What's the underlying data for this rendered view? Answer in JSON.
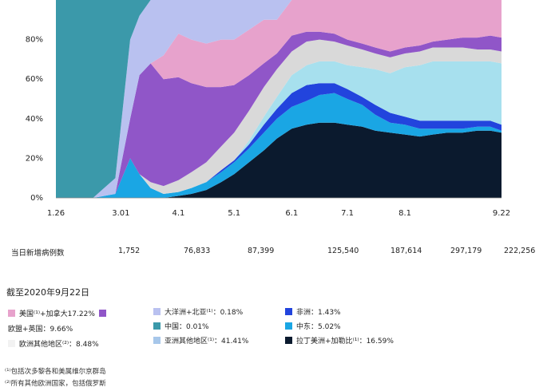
{
  "chart_data": {
    "type": "area",
    "stacked": true,
    "ylim": [
      0,
      100
    ],
    "ytick_labels": [
      "0%",
      "20%",
      "40%",
      "60%",
      "80%"
    ],
    "y_ticks": [
      0,
      20,
      40,
      60,
      80
    ],
    "x_range": [
      "2020-01-26",
      "2020-09-22"
    ],
    "x_tick_labels": [
      {
        "date": "2020-01-26",
        "label": "1.26"
      },
      {
        "date": "2020-03-01",
        "label": "3.01"
      },
      {
        "date": "2020-04-01",
        "label": "4.1"
      },
      {
        "date": "2020-05-01",
        "label": "5.1"
      },
      {
        "date": "2020-06-01",
        "label": "6.1"
      },
      {
        "date": "2020-07-01",
        "label": "7.1"
      },
      {
        "date": "2020-08-01",
        "label": "8.1"
      },
      {
        "date": "2020-09-22",
        "label": "9.22"
      }
    ],
    "x": [
      "2020-01-26",
      "2020-02-15",
      "2020-02-27",
      "2020-03-06",
      "2020-03-11",
      "2020-03-17",
      "2020-03-24",
      "2020-04-01",
      "2020-04-08",
      "2020-04-16",
      "2020-04-24",
      "2020-05-01",
      "2020-05-09",
      "2020-05-17",
      "2020-05-24",
      "2020-06-01",
      "2020-06-09",
      "2020-06-16",
      "2020-06-24",
      "2020-07-01",
      "2020-07-09",
      "2020-07-16",
      "2020-07-24",
      "2020-08-01",
      "2020-08-09",
      "2020-08-16",
      "2020-08-24",
      "2020-09-01",
      "2020-09-09",
      "2020-09-16",
      "2020-09-22"
    ],
    "series": [
      {
        "color": "#0b1a2e",
        "values": [
          0,
          0,
          0,
          0,
          0,
          0,
          0,
          1,
          2,
          4,
          8,
          12,
          18,
          24,
          30,
          35,
          37,
          38,
          38,
          37,
          36,
          34,
          33,
          32,
          31,
          32,
          33,
          33,
          34,
          34,
          33
        ]
      },
      {
        "color": "#1aa6e4",
        "values": [
          0,
          0,
          2,
          20,
          12,
          5,
          2,
          2,
          3,
          4,
          5,
          6,
          7,
          9,
          10,
          11,
          12,
          14,
          15,
          13,
          11,
          8,
          5,
          5,
          4,
          3,
          2,
          2,
          2,
          2,
          1
        ]
      },
      {
        "color": "#2244dd",
        "values": [
          0,
          0,
          0,
          0,
          0,
          0,
          0,
          0,
          0,
          0,
          1,
          1,
          2,
          4,
          5,
          7,
          8,
          6,
          5,
          5,
          4,
          5,
          5,
          4,
          4,
          4,
          4,
          4,
          3,
          3,
          3
        ]
      },
      {
        "color": "#a7e0ee",
        "values": [
          0,
          0,
          0,
          0,
          0,
          0,
          0,
          0,
          0,
          0,
          0,
          0,
          2,
          4,
          6,
          9,
          10,
          11,
          11,
          12,
          15,
          18,
          20,
          25,
          28,
          30,
          30,
          30,
          30,
          30,
          31
        ]
      },
      {
        "color": "#d9d9d9",
        "values": [
          0,
          0,
          0,
          0,
          0,
          3,
          4,
          6,
          8,
          10,
          12,
          14,
          15,
          15,
          14,
          12,
          12,
          11,
          10,
          10,
          9,
          8,
          8,
          7,
          7,
          7,
          7,
          7,
          6,
          6,
          6
        ]
      },
      {
        "color": "#9056c8",
        "values": [
          0,
          0,
          0,
          20,
          50,
          60,
          54,
          52,
          45,
          38,
          30,
          24,
          18,
          12,
          8,
          8,
          5,
          4,
          4,
          3,
          3,
          3,
          3,
          3,
          3,
          3,
          4,
          5,
          6,
          7,
          7
        ]
      },
      {
        "color": "#e7a2cc",
        "values": [
          0,
          0,
          0,
          0,
          0,
          0,
          12,
          22,
          22,
          22,
          24,
          23,
          23,
          22,
          17,
          18,
          16,
          16,
          17,
          20,
          22,
          24,
          26,
          24,
          23,
          21,
          20,
          19,
          19,
          18,
          19
        ]
      },
      {
        "color": "#b9c1f0",
        "values": [
          0,
          0,
          8,
          40,
          30,
          32,
          28,
          17,
          20,
          22,
          20,
          20,
          15,
          10,
          10,
          0,
          0,
          0,
          0,
          0,
          0,
          0,
          0,
          0,
          0,
          0,
          0,
          0,
          0,
          0,
          0
        ]
      },
      {
        "color": "#3b99aa",
        "values": [
          100,
          100,
          90,
          20,
          8,
          0,
          0,
          0,
          0,
          0,
          0,
          0,
          0,
          0,
          0,
          0,
          0,
          0,
          0,
          0,
          0,
          0,
          0,
          0,
          0,
          0,
          0,
          0,
          0,
          0,
          0
        ]
      }
    ]
  },
  "new_cases": {
    "label": "当日新增病例数",
    "values": [
      "1,752",
      "76,833",
      "87,399",
      "125,540",
      "187,614",
      "297,179",
      "222,256"
    ]
  },
  "as_of": "截至2020年9月22日",
  "legend": [
    {
      "text": "美国⁽¹⁾+加拿大17.22%",
      "color": "#e7a2cc",
      "color2": "#9056c8"
    },
    {
      "text": "欧盟+英国：9.66%",
      "color": ""
    },
    {
      "text": "欧洲其他地区⁽²⁾：8.48%",
      "color": "#f2f2f2"
    },
    {
      "text": "大洋洲+北亚⁽¹⁾：0.18%",
      "color": "#b9c1f0"
    },
    {
      "text": "中国：0.01%",
      "color": "#3b99aa"
    },
    {
      "text": "亚洲其他地区⁽¹⁾：41.41%",
      "color": "#a7c7ea"
    },
    {
      "text": "非洲：1.43%",
      "color": "#2244dd"
    },
    {
      "text": "中东：5.02%",
      "color": "#1aa6e4"
    },
    {
      "text": "拉丁美洲+加勒比⁽¹⁾：16.59%",
      "color": "#0b1a2e"
    }
  ],
  "notes": [
    "⁽¹⁾包括次多黎各和美属维尔京群岛",
    "⁽²⁾所有其他欧洲国家，包括俄罗斯"
  ]
}
